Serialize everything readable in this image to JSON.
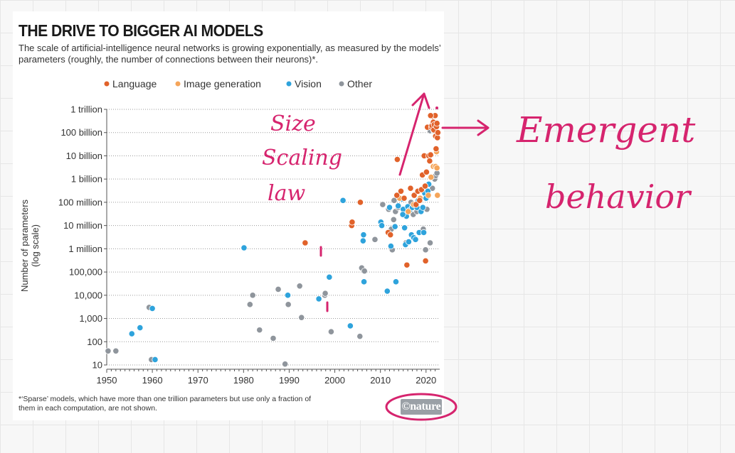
{
  "figure": {
    "title": "THE DRIVE TO BIGGER AI MODELS",
    "subtitle": "The scale of artificial-intelligence neural networks is growing exponentially, as measured by the models’ parameters (roughly, the number of connections between their neurons)*.",
    "footnote": "*‘Sparse’ models, which have more than one trillion parameters but use only a fraction of them in each computation, are not shown.",
    "logo": "©nature"
  },
  "annotations": {
    "size_scaling_law": [
      "Size",
      "Scaling",
      "law"
    ],
    "emergent_behavior": [
      "Emergent",
      "behavior"
    ],
    "color": "#d6246e"
  },
  "colors": {
    "Language": "#e1622a",
    "Image generation": "#f5a55a",
    "Vision": "#2ea3dc",
    "Other": "#8f959c"
  },
  "chart_data": {
    "type": "scatter",
    "title": "THE DRIVE TO BIGGER AI MODELS",
    "xlabel": "",
    "ylabel": "Number of parameters (log scale)",
    "ylabel_lines": [
      "Number of parameters",
      "(log scale)"
    ],
    "xlim": [
      1950,
      2023
    ],
    "ylim": [
      10,
      1000000000000
    ],
    "yscale": "log",
    "x_ticks": [
      1950,
      1960,
      1970,
      1980,
      1990,
      2000,
      2010,
      2020
    ],
    "y_ticks": [
      {
        "value": 10,
        "label": "10"
      },
      {
        "value": 100,
        "label": "100"
      },
      {
        "value": 1000,
        "label": "1,000"
      },
      {
        "value": 10000,
        "label": "10,000"
      },
      {
        "value": 100000,
        "label": "100,000"
      },
      {
        "value": 1000000,
        "label": "1 million"
      },
      {
        "value": 10000000,
        "label": "10 million"
      },
      {
        "value": 100000000,
        "label": "100 million"
      },
      {
        "value": 1000000000,
        "label": "1 billion"
      },
      {
        "value": 10000000000,
        "label": "10 billion"
      },
      {
        "value": 100000000000,
        "label": "100 billion"
      },
      {
        "value": 1000000000000,
        "label": "1 trillion"
      }
    ],
    "legend": [
      "Language",
      "Image generation",
      "Vision",
      "Other"
    ],
    "series": [
      {
        "name": "Language",
        "points": [
          [
            1993.5,
            1800000.0
          ],
          [
            2003.7,
            10000000.0
          ],
          [
            2003.8,
            14000000.0
          ],
          [
            2005.6,
            100000000.0
          ],
          [
            2011.7,
            5000000.0
          ],
          [
            2012.2,
            4000000.0
          ],
          [
            2013.7,
            7000000000.0
          ],
          [
            2013.6,
            200000000.0
          ],
          [
            2014.5,
            300000000.0
          ],
          [
            2015.2,
            150000000.0
          ],
          [
            2015.8,
            200000.0
          ],
          [
            2016.6,
            400000000.0
          ],
          [
            2017.4,
            200000000.0
          ],
          [
            2017.8,
            80000000.0
          ],
          [
            2018.2,
            300000000.0
          ],
          [
            2018.6,
            120000000.0
          ],
          [
            2019.0,
            350000000.0
          ],
          [
            2019.2,
            1500000000.0
          ],
          [
            2019.6,
            10000000000.0
          ],
          [
            2019.8,
            500000000.0
          ],
          [
            2019.9,
            300000.0
          ],
          [
            2020.1,
            2000000000.0
          ],
          [
            2020.3,
            170000000000.0
          ],
          [
            2020.6,
            10000000000.0
          ],
          [
            2020.8,
            6000000000.0
          ],
          [
            2021.0,
            11000000000.0
          ],
          [
            2021.2,
            170000000000.0
          ],
          [
            2021.3,
            200000000000.0
          ],
          [
            2021.5,
            500000000000.0
          ],
          [
            2021.6,
            280000000000.0
          ],
          [
            2021.7,
            130000000000.0
          ],
          [
            2021.8,
            220000000000.0
          ],
          [
            2021.9,
            530000000000.0
          ],
          [
            2022.0,
            540000000000.0
          ],
          [
            2022.1,
            70000000000.0
          ],
          [
            2022.2,
            20000000000.0
          ],
          [
            2022.3,
            180000000000.0
          ],
          [
            2022.4,
            250000000000.0
          ],
          [
            2022.5,
            60000000000.0
          ],
          [
            2021.0,
            540000000000.0
          ],
          [
            2022.6,
            100000000000.0
          ]
        ]
      },
      {
        "name": "Image generation",
        "points": [
          [
            2014.2,
            150000000.0
          ],
          [
            2016.1,
            40000000.0
          ],
          [
            2017.3,
            80000000.0
          ],
          [
            2018.7,
            150000000.0
          ],
          [
            2020.5,
            200000000.0
          ],
          [
            2021.1,
            1200000000.0
          ],
          [
            2021.6,
            3500000000.0
          ],
          [
            2022.1,
            3500000000.0
          ],
          [
            2022.3,
            15000000000.0
          ],
          [
            2022.4,
            3000000000.0
          ],
          [
            2022.5,
            200000000.0
          ]
        ]
      },
      {
        "name": "Vision",
        "points": [
          [
            1955.5,
            220
          ],
          [
            1957.3,
            400
          ],
          [
            1960.0,
            2700
          ],
          [
            1960.6,
            17
          ],
          [
            1980.1,
            1100000.0
          ],
          [
            1989.7,
            10000
          ],
          [
            1996.5,
            7000
          ],
          [
            1998.8,
            60000
          ],
          [
            2001.8,
            120000000.0
          ],
          [
            2003.4,
            480
          ],
          [
            2006.2,
            2200000.0
          ],
          [
            2006.3,
            4000000.0
          ],
          [
            2006.4,
            38000
          ],
          [
            2010.1,
            14000000.0
          ],
          [
            2010.3,
            10000000.0
          ],
          [
            2011.5,
            15000
          ],
          [
            2012.0,
            60000000.0
          ],
          [
            2012.3,
            1300000.0
          ],
          [
            2013.4,
            38000
          ],
          [
            2013.9,
            70000000.0
          ],
          [
            2014.7,
            140000000.0
          ],
          [
            2015.0,
            50000000.0
          ],
          [
            2015.3,
            8000000.0
          ],
          [
            2015.5,
            1500000.0
          ],
          [
            2015.7,
            25000000.0
          ],
          [
            2016.0,
            65000000.0
          ],
          [
            2016.4,
            45000000.0
          ],
          [
            2016.8,
            4000000.0
          ],
          [
            2017.0,
            60000000.0
          ],
          [
            2017.3,
            3000000.0
          ],
          [
            2017.7,
            2500000.0
          ],
          [
            2018.0,
            60000000.0
          ],
          [
            2018.3,
            120000000.0
          ],
          [
            2018.5,
            5000000.0
          ],
          [
            2018.9,
            40000000.0
          ],
          [
            2019.3,
            60000000.0
          ],
          [
            2019.5,
            5000000.0
          ],
          [
            2019.7,
            250000000.0
          ],
          [
            2020.0,
            150000000.0
          ],
          [
            2020.4,
            300000000.0
          ],
          [
            2020.6,
            600000000.0
          ],
          [
            2016.2,
            2000000.0
          ],
          [
            2014.9,
            30000000.0
          ],
          [
            2013.2,
            9000000.0
          ]
        ]
      },
      {
        "name": "Other",
        "points": [
          [
            1950.3,
            40
          ],
          [
            1952.0,
            40
          ],
          [
            1959.3,
            3000
          ],
          [
            1959.8,
            17
          ],
          [
            1981.4,
            4000
          ],
          [
            1982.0,
            10000
          ],
          [
            1983.5,
            320
          ],
          [
            1986.5,
            140
          ],
          [
            1987.6,
            18000
          ],
          [
            1989.1,
            11
          ],
          [
            1989.8,
            4000
          ],
          [
            1992.3,
            25000
          ],
          [
            1992.7,
            1100
          ],
          [
            1997.8,
            10000
          ],
          [
            1997.9,
            12000
          ],
          [
            1999.2,
            270
          ],
          [
            2005.5,
            170
          ],
          [
            2005.9,
            150000.0
          ],
          [
            2006.5,
            110000.0
          ],
          [
            2008.8,
            2500000.0
          ],
          [
            2010.5,
            80000000.0
          ],
          [
            2011.8,
            50000000.0
          ],
          [
            2012.4,
            7000000.0
          ],
          [
            2012.6,
            900000.0
          ],
          [
            2013.0,
            120000000.0
          ],
          [
            2013.3,
            40000000.0
          ],
          [
            2013.9,
            60000000.0
          ],
          [
            2015.6,
            1800000.0
          ],
          [
            2016.7,
            100000000.0
          ],
          [
            2017.2,
            30000000.0
          ],
          [
            2018.0,
            40000000.0
          ],
          [
            2018.8,
            50000000.0
          ],
          [
            2019.4,
            7000000.0
          ],
          [
            2019.9,
            900000.0
          ],
          [
            2020.2,
            50000000.0
          ],
          [
            2020.5,
            300000000.0
          ],
          [
            2020.9,
            1800000.0
          ],
          [
            2021.4,
            400000000.0
          ],
          [
            2021.9,
            1000000000.0
          ],
          [
            2022.1,
            1400000000.0
          ],
          [
            2022.4,
            1800000000.0
          ],
          [
            2020.9,
            120000000000.0
          ],
          [
            2021.7,
            120000000000.0
          ],
          [
            2012.9,
            18000000.0
          ]
        ]
      }
    ]
  }
}
